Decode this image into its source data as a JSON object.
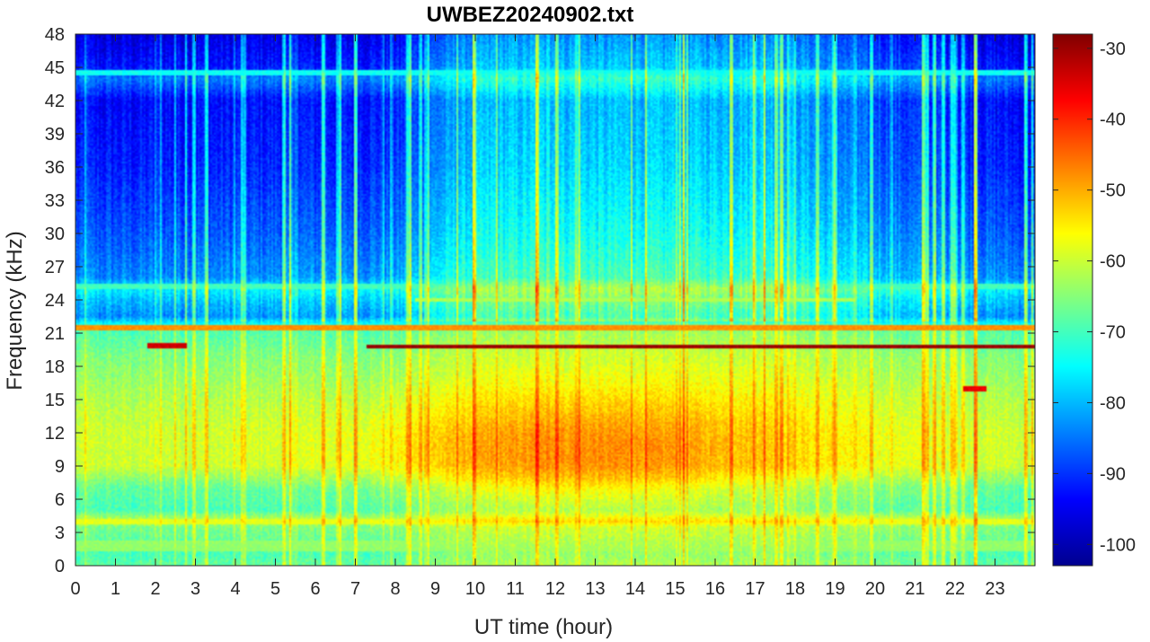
{
  "chart_data": {
    "type": "heatmap",
    "title": "UWBEZ20240902.txt",
    "xlabel": "UT time (hour)",
    "ylabel": "Frequency (kHz)",
    "xlim": [
      0,
      24
    ],
    "ylim": [
      0,
      48
    ],
    "x_ticks": [
      0,
      1,
      2,
      3,
      4,
      5,
      6,
      7,
      8,
      9,
      10,
      11,
      12,
      13,
      14,
      15,
      16,
      17,
      18,
      19,
      20,
      21,
      22,
      23
    ],
    "y_ticks": [
      0,
      3,
      6,
      9,
      12,
      15,
      18,
      21,
      24,
      27,
      30,
      33,
      36,
      39,
      42,
      45,
      48
    ],
    "colorbar": {
      "colormap": "jet",
      "range": [
        -103,
        -28
      ],
      "ticks": [
        -100,
        -90,
        -80,
        -70,
        -60,
        -50,
        -40,
        -30
      ]
    },
    "background_profile": [
      {
        "freq": 0,
        "level": -68
      },
      {
        "freq": 1,
        "level": -70
      },
      {
        "freq": 3.5,
        "level": -66
      },
      {
        "freq": 4,
        "level": -60
      },
      {
        "freq": 5,
        "level": -70
      },
      {
        "freq": 7,
        "level": -68
      },
      {
        "freq": 9,
        "level": -60
      },
      {
        "freq": 12,
        "level": -60
      },
      {
        "freq": 15,
        "level": -62
      },
      {
        "freq": 19,
        "level": -66
      },
      {
        "freq": 21.5,
        "level": -70
      },
      {
        "freq": 22.5,
        "level": -84
      },
      {
        "freq": 24,
        "level": -80
      },
      {
        "freq": 25,
        "level": -76
      },
      {
        "freq": 26,
        "level": -84
      },
      {
        "freq": 30,
        "level": -88
      },
      {
        "freq": 36,
        "level": -92
      },
      {
        "freq": 42,
        "level": -94
      },
      {
        "freq": 44,
        "level": -85
      },
      {
        "freq": 45,
        "level": -93
      },
      {
        "freq": 48,
        "level": -97
      }
    ],
    "daytime_enhancement": [
      {
        "hour": 0,
        "level": 0
      },
      {
        "hour": 8,
        "level": 0.15
      },
      {
        "hour": 9.5,
        "level": 0.8
      },
      {
        "hour": 10.5,
        "level": 1
      },
      {
        "hour": 17.5,
        "level": 1
      },
      {
        "hour": 19.5,
        "level": 0.5
      },
      {
        "hour": 21,
        "level": 0.25
      },
      {
        "hour": 24,
        "level": 0
      }
    ],
    "storm_blob": {
      "center_hour": 12.8,
      "center_freq": 10.5,
      "peak_level": -47
    },
    "narrowband_lines": [
      {
        "freq": 21.5,
        "start": 0,
        "end": 24,
        "level": -48
      },
      {
        "freq": 19.8,
        "start": 7.3,
        "end": 24,
        "level": -30
      },
      {
        "freq": 19.9,
        "start": 1.8,
        "end": 2.8,
        "level": -34
      },
      {
        "freq": 16.0,
        "start": 22.2,
        "end": 22.8,
        "level": -36
      },
      {
        "freq": 44.5,
        "start": 0,
        "end": 24,
        "level": -74
      },
      {
        "freq": 25.2,
        "start": 0,
        "end": 24,
        "level": -70
      },
      {
        "freq": 24.0,
        "start": 8.5,
        "end": 19.5,
        "level": -62
      },
      {
        "freq": 4.0,
        "start": 0,
        "end": 24,
        "level": -58
      },
      {
        "freq": 2.0,
        "start": 0,
        "end": 24,
        "level": -64
      },
      {
        "freq": 1.5,
        "start": 0,
        "end": 24,
        "level": -64
      }
    ]
  }
}
